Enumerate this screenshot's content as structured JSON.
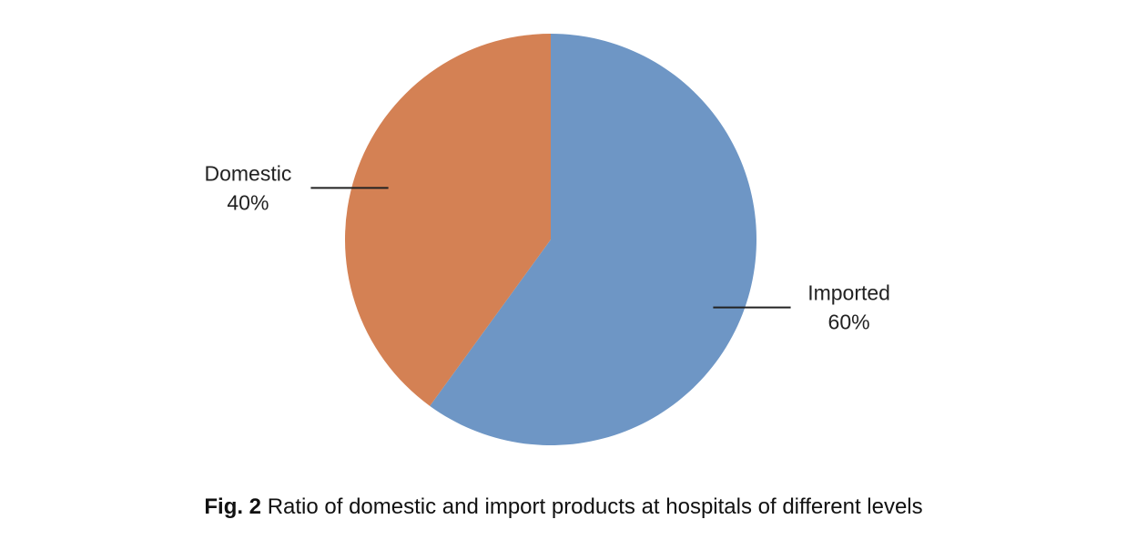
{
  "chart_data": {
    "type": "pie",
    "slices": [
      {
        "label": "Imported",
        "value": 60,
        "value_label": "60%",
        "color": "#6e96c5"
      },
      {
        "label": "Domestic",
        "value": 40,
        "value_label": "40%",
        "color": "#d48154"
      }
    ],
    "start_angle_deg": 0,
    "direction": "clockwise",
    "leader_color": "#222222"
  },
  "caption": {
    "fig_label": "Fig. 2",
    "text": "Ratio of domestic and import products at hospitals of different levels"
  }
}
